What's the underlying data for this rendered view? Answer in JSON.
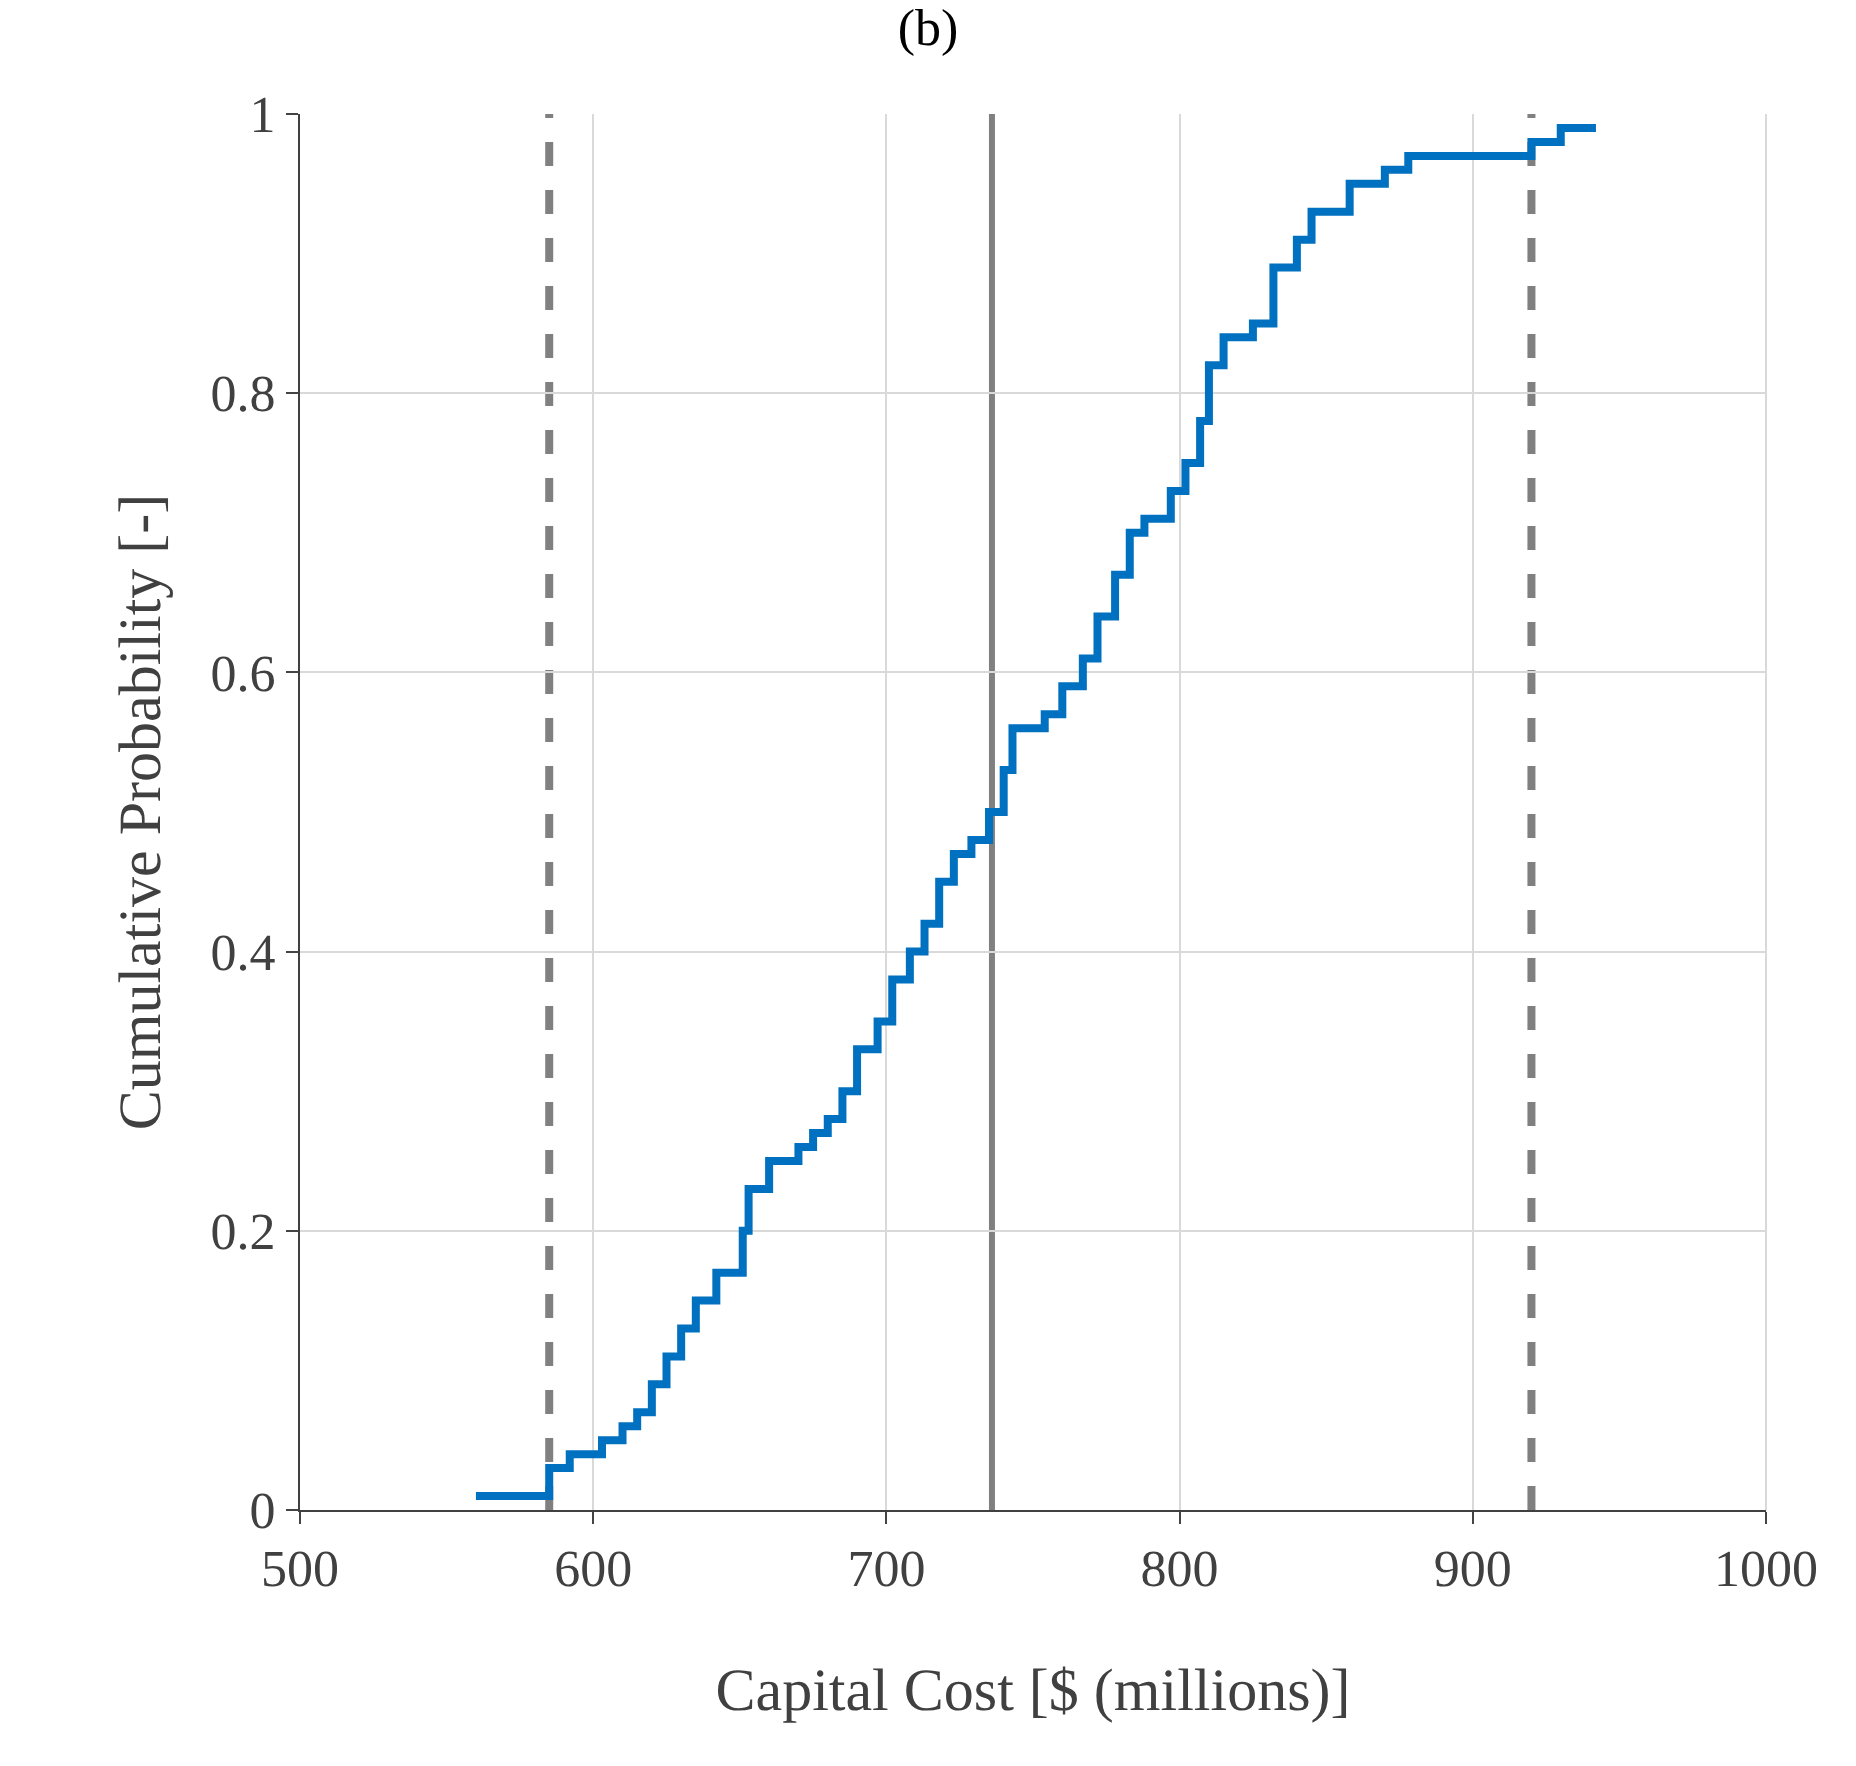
{
  "chart_data": {
    "type": "step",
    "title": "(b)",
    "xlabel": "Capital Cost [$ (millions)]",
    "ylabel": "Cumulative Probability [-]",
    "x": [
      560,
      585,
      592,
      603,
      610,
      615,
      620,
      625,
      630,
      635,
      642,
      651,
      653,
      660,
      670,
      675,
      680,
      685,
      690,
      697,
      702,
      708,
      713,
      718,
      723,
      729,
      735,
      740,
      743,
      754,
      760,
      767,
      772,
      778,
      783,
      788,
      797,
      802,
      807,
      810,
      815,
      825,
      832,
      840,
      845,
      858,
      870,
      878,
      920,
      930,
      942
    ],
    "series": [
      {
        "color": "#0070c0",
        "values": [
          0.01,
          0.03,
          0.04,
          0.05,
          0.06,
          0.07,
          0.09,
          0.11,
          0.13,
          0.15,
          0.17,
          0.2,
          0.23,
          0.25,
          0.26,
          0.27,
          0.28,
          0.3,
          0.33,
          0.35,
          0.38,
          0.4,
          0.42,
          0.45,
          0.47,
          0.48,
          0.5,
          0.53,
          0.56,
          0.57,
          0.59,
          0.61,
          0.64,
          0.67,
          0.7,
          0.71,
          0.73,
          0.75,
          0.78,
          0.82,
          0.84,
          0.85,
          0.89,
          0.91,
          0.93,
          0.95,
          0.96,
          0.97,
          0.98,
          0.99,
          0.99
        ]
      }
    ],
    "xlim": [
      500,
      1000
    ],
    "xticks": [
      500,
      600,
      700,
      800,
      900,
      1000
    ],
    "ylim": [
      0,
      1
    ],
    "yticks": [
      0,
      0.2,
      0.4,
      0.6,
      0.8,
      1
    ],
    "grid": true,
    "ref_lines": [
      {
        "axis": "x",
        "value": 585,
        "color": "#808080",
        "line_style": "dashed"
      },
      {
        "axis": "x",
        "value": 736,
        "color": "#808080",
        "line_style": "solid"
      },
      {
        "axis": "x",
        "value": 920,
        "color": "#808080",
        "line_style": "dashed"
      }
    ]
  }
}
